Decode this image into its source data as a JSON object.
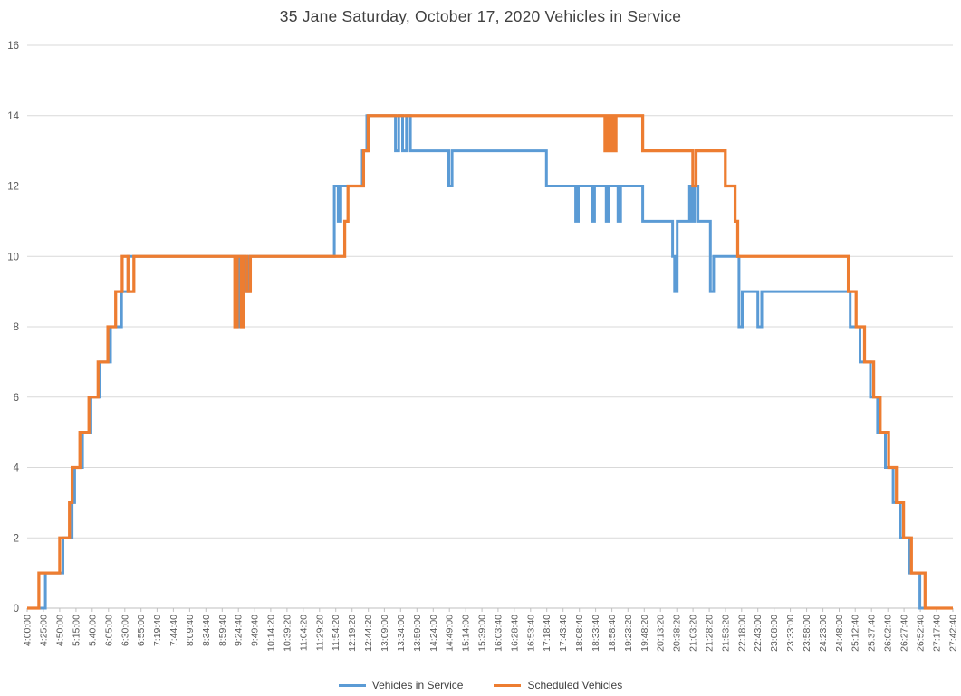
{
  "chart_data": {
    "type": "line",
    "step": true,
    "title": "35 Jane Saturday, October 17, 2020 Vehicles in Service",
    "xlabel": "",
    "ylabel": "",
    "ylim": [
      0,
      16
    ],
    "y_ticks": [
      0,
      2,
      4,
      6,
      8,
      10,
      12,
      14,
      16
    ],
    "grid": "horizontal",
    "legend_position": "bottom",
    "x_unit": "minutes_since_midnight",
    "x_ticks": [
      "4:00:00",
      "4:25:00",
      "4:50:00",
      "5:15:00",
      "5:40:00",
      "6:05:00",
      "6:30:00",
      "6:55:00",
      "7:19:40",
      "7:44:40",
      "8:09:40",
      "8:34:40",
      "8:59:40",
      "9:24:40",
      "9:49:40",
      "10:14:20",
      "10:39:20",
      "11:04:20",
      "11:29:20",
      "11:54:20",
      "12:19:20",
      "12:44:20",
      "13:09:00",
      "13:34:00",
      "13:59:00",
      "14:24:00",
      "14:49:00",
      "15:14:00",
      "15:39:00",
      "16:03:40",
      "16:28:40",
      "16:53:40",
      "17:18:40",
      "17:43:40",
      "18:08:40",
      "18:33:40",
      "18:58:40",
      "19:23:20",
      "19:48:20",
      "20:13:20",
      "20:38:20",
      "21:03:20",
      "21:28:20",
      "21:53:20",
      "22:18:00",
      "22:43:00",
      "23:08:00",
      "23:33:00",
      "23:58:00",
      "24:23:00",
      "24:48:00",
      "25:12:40",
      "25:37:40",
      "26:02:40",
      "26:27:40",
      "26:52:40",
      "27:17:40",
      "27:42:40"
    ],
    "colors": {
      "grid": "#d9d9d9",
      "axis": "#bfbfbf",
      "tick_label": "#595959",
      "title": "#404040"
    },
    "series": [
      {
        "name": "Vehicles in Service",
        "color": "#5B9BD5",
        "width": 3,
        "points": [
          [
            240,
            0
          ],
          [
            268,
            1
          ],
          [
            295,
            2
          ],
          [
            309,
            3
          ],
          [
            313,
            4
          ],
          [
            325,
            5
          ],
          [
            338,
            6
          ],
          [
            352,
            7
          ],
          [
            368,
            8
          ],
          [
            385,
            9
          ],
          [
            395,
            10
          ],
          [
            562,
            8
          ],
          [
            566,
            10
          ],
          [
            575,
            9
          ],
          [
            581,
            10
          ],
          [
            712,
            12
          ],
          [
            718,
            11
          ],
          [
            722,
            12
          ],
          [
            755,
            13
          ],
          [
            762,
            14
          ],
          [
            806,
            13
          ],
          [
            811,
            14
          ],
          [
            817,
            13
          ],
          [
            823,
            14
          ],
          [
            829,
            13
          ],
          [
            888,
            12
          ],
          [
            893,
            13
          ],
          [
            1038,
            12
          ],
          [
            1083,
            11
          ],
          [
            1087,
            12
          ],
          [
            1108,
            11
          ],
          [
            1112,
            12
          ],
          [
            1130,
            11
          ],
          [
            1134,
            12
          ],
          [
            1148,
            11
          ],
          [
            1152,
            12
          ],
          [
            1186,
            11
          ],
          [
            1232,
            10
          ],
          [
            1235,
            9
          ],
          [
            1239,
            11
          ],
          [
            1258,
            12
          ],
          [
            1262,
            11
          ],
          [
            1266,
            12
          ],
          [
            1271,
            11
          ],
          [
            1290,
            9
          ],
          [
            1295,
            10
          ],
          [
            1334,
            8
          ],
          [
            1339,
            9
          ],
          [
            1363,
            8
          ],
          [
            1369,
            9
          ],
          [
            1505,
            8
          ],
          [
            1520,
            7
          ],
          [
            1536,
            6
          ],
          [
            1547,
            5
          ],
          [
            1559,
            4
          ],
          [
            1571,
            3
          ],
          [
            1582,
            2
          ],
          [
            1596,
            1
          ],
          [
            1612,
            0
          ],
          [
            1662.67,
            0
          ]
        ]
      },
      {
        "name": "Scheduled Vehicles",
        "color": "#ED7D31",
        "width": 3.25,
        "points": [
          [
            240,
            0
          ],
          [
            258,
            1
          ],
          [
            290,
            2
          ],
          [
            305,
            3
          ],
          [
            309,
            4
          ],
          [
            321,
            5
          ],
          [
            335,
            6
          ],
          [
            349,
            7
          ],
          [
            364,
            8
          ],
          [
            376,
            9
          ],
          [
            386,
            10
          ],
          [
            395,
            9
          ],
          [
            404,
            10
          ],
          [
            559,
            8
          ],
          [
            563,
            10
          ],
          [
            569,
            8
          ],
          [
            573,
            10
          ],
          [
            578,
            9
          ],
          [
            583,
            10
          ],
          [
            728,
            11
          ],
          [
            733,
            12
          ],
          [
            757,
            13
          ],
          [
            764,
            14
          ],
          [
            1128,
            13
          ],
          [
            1131,
            14
          ],
          [
            1134,
            13
          ],
          [
            1137,
            14
          ],
          [
            1141,
            13
          ],
          [
            1145,
            14
          ],
          [
            1186,
            13
          ],
          [
            1263,
            12
          ],
          [
            1268,
            13
          ],
          [
            1313,
            12
          ],
          [
            1328,
            11
          ],
          [
            1332,
            10
          ],
          [
            1502,
            9
          ],
          [
            1514,
            8
          ],
          [
            1527,
            7
          ],
          [
            1541,
            6
          ],
          [
            1551,
            5
          ],
          [
            1564,
            4
          ],
          [
            1576,
            3
          ],
          [
            1587,
            2
          ],
          [
            1599,
            1
          ],
          [
            1620,
            0
          ],
          [
            1662.67,
            0
          ]
        ]
      }
    ]
  }
}
